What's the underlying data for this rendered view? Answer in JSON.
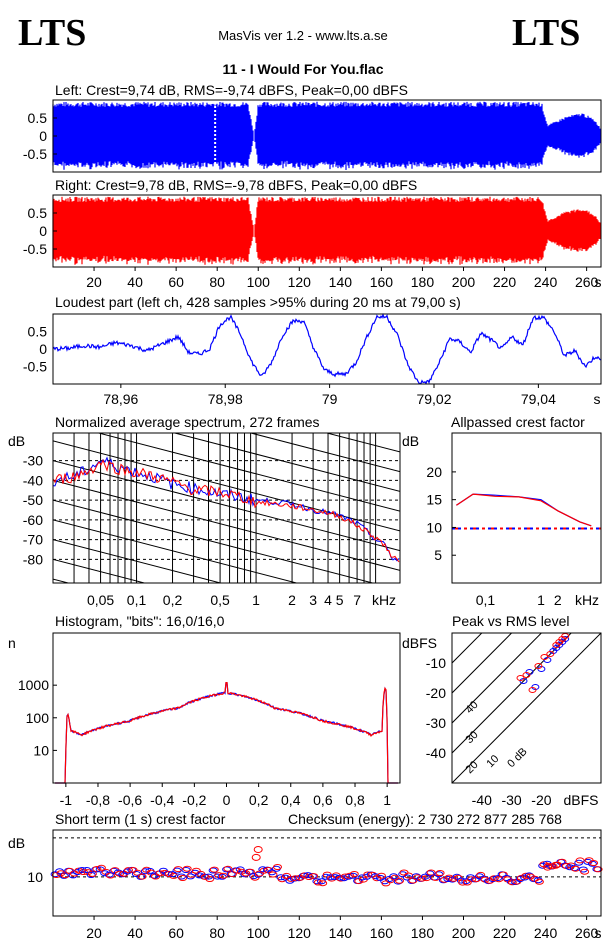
{
  "header": {
    "logo_left": "LTS",
    "logo_right": "LTS",
    "app_title": "MasVis ver 1.2 - www.lts.a.se",
    "file_title": "11 - I Would For You.flac"
  },
  "colors": {
    "left": "#0000ff",
    "right": "#ff0000",
    "grid": "#000000"
  },
  "chart_data": [
    {
      "id": "left_waveform",
      "type": "area",
      "title": "Left: Crest=9,74 dB, RMS=-9,74 dBFS, Peak=0,00 dBFS",
      "channel": "left",
      "ylim": [
        -1,
        1
      ],
      "xlim": [
        0,
        267
      ],
      "yticks": [
        "0.5",
        "0",
        "-0.5"
      ],
      "envelope": [
        [
          0,
          0.95
        ],
        [
          78,
          0.95
        ],
        [
          80,
          0.95
        ],
        [
          95,
          0.95
        ],
        [
          98,
          0.0
        ],
        [
          100,
          0.95
        ],
        [
          102,
          0.95
        ],
        [
          238,
          0.95
        ],
        [
          241,
          0.3
        ],
        [
          250,
          0.55
        ],
        [
          258,
          0.65
        ],
        [
          264,
          0.45
        ],
        [
          267,
          0.2
        ]
      ],
      "dotted_marker_x": 79
    },
    {
      "id": "right_waveform",
      "type": "area",
      "title": "Right: Crest=9,78 dB, RMS=-9,78 dBFS, Peak=0,00 dBFS",
      "channel": "right",
      "ylim": [
        -1,
        1
      ],
      "xlim": [
        0,
        267
      ],
      "yticks": [
        "0.5",
        "0",
        "-0.5"
      ],
      "xticks": [
        "20",
        "40",
        "60",
        "80",
        "100",
        "120",
        "140",
        "160",
        "180",
        "200",
        "220",
        "240",
        "260"
      ],
      "xunit": "s",
      "envelope": [
        [
          0,
          0.95
        ],
        [
          95,
          0.95
        ],
        [
          98,
          0.0
        ],
        [
          100,
          0.95
        ],
        [
          102,
          0.95
        ],
        [
          238,
          0.95
        ],
        [
          241,
          0.3
        ],
        [
          250,
          0.55
        ],
        [
          258,
          0.65
        ],
        [
          264,
          0.45
        ],
        [
          267,
          0.2
        ]
      ]
    },
    {
      "id": "loudest_part",
      "type": "line",
      "title": "Loudest part (left  ch, 428 samples >95% during 20 ms at 79,00 s)",
      "xlim": [
        78.947,
        79.052
      ],
      "ylim": [
        -1,
        1
      ],
      "yticks": [
        "0.5",
        "0",
        "-0.5"
      ],
      "xticks": [
        "78,96",
        "78,98",
        "79",
        "79,02",
        "79,04"
      ],
      "xunit": "s",
      "series": [
        {
          "values": [
            [
              78.947,
              0.0
            ],
            [
              78.95,
              0.02
            ],
            [
              78.953,
              0.1
            ],
            [
              78.956,
              0.05
            ],
            [
              78.959,
              0.18
            ],
            [
              78.962,
              0.1
            ],
            [
              78.965,
              -0.05
            ],
            [
              78.968,
              0.15
            ],
            [
              78.971,
              0.35
            ],
            [
              78.973,
              -0.1
            ],
            [
              78.975,
              -0.15
            ],
            [
              78.977,
              0.0
            ],
            [
              78.979,
              0.7
            ],
            [
              78.981,
              0.92
            ],
            [
              78.983,
              0.4
            ],
            [
              78.985,
              -0.35
            ],
            [
              78.987,
              -0.8
            ],
            [
              78.989,
              -0.35
            ],
            [
              78.991,
              0.4
            ],
            [
              78.993,
              0.8
            ],
            [
              78.995,
              0.8
            ],
            [
              78.997,
              0.0
            ],
            [
              78.999,
              -0.6
            ],
            [
              79.001,
              -0.72
            ],
            [
              79.003,
              -0.72
            ],
            [
              79.005,
              -0.4
            ],
            [
              79.007,
              0.3
            ],
            [
              79.009,
              0.92
            ],
            [
              79.011,
              0.92
            ],
            [
              79.013,
              0.4
            ],
            [
              79.015,
              -0.45
            ],
            [
              79.017,
              -0.95
            ],
            [
              79.019,
              -0.95
            ],
            [
              79.021,
              -0.4
            ],
            [
              79.023,
              0.3
            ],
            [
              79.025,
              0.2
            ],
            [
              79.027,
              -0.1
            ],
            [
              79.029,
              0.45
            ],
            [
              79.031,
              0.25
            ],
            [
              79.033,
              0.0
            ],
            [
              79.035,
              0.35
            ],
            [
              79.037,
              0.1
            ],
            [
              79.039,
              0.9
            ],
            [
              79.041,
              0.9
            ],
            [
              79.043,
              0.5
            ],
            [
              79.045,
              -0.2
            ],
            [
              79.047,
              -0.05
            ],
            [
              79.049,
              -0.5
            ],
            [
              79.051,
              -0.2
            ],
            [
              79.052,
              -0.35
            ]
          ]
        }
      ]
    },
    {
      "id": "spectrum",
      "type": "line",
      "title": "Normalized average spectrum, 272 frames",
      "ylabel": "dB",
      "xunit": "kHz",
      "yticks": [
        "-30",
        "-40",
        "-50",
        "-60",
        "-70",
        "-80"
      ],
      "xticks": [
        "0,05",
        "0,1",
        "0,2",
        "0,5",
        "1",
        "2",
        "3",
        "4",
        "5",
        "7"
      ],
      "series": [
        {
          "channel": "left",
          "values": [
            [
              0.02,
              -40
            ],
            [
              0.03,
              -38
            ],
            [
              0.04,
              -34
            ],
            [
              0.05,
              -30
            ],
            [
              0.07,
              -33
            ],
            [
              0.1,
              -36
            ],
            [
              0.2,
              -42
            ],
            [
              0.3,
              -44
            ],
            [
              0.5,
              -47
            ],
            [
              1,
              -50
            ],
            [
              2,
              -52
            ],
            [
              3,
              -55
            ],
            [
              5,
              -58
            ],
            [
              7,
              -62
            ],
            [
              10,
              -70
            ],
            [
              12,
              -73
            ],
            [
              14,
              -80
            ]
          ]
        },
        {
          "channel": "right",
          "values": [
            [
              0.02,
              -40
            ],
            [
              0.03,
              -38
            ],
            [
              0.04,
              -35
            ],
            [
              0.05,
              -31
            ],
            [
              0.07,
              -34
            ],
            [
              0.1,
              -36
            ],
            [
              0.2,
              -41
            ],
            [
              0.3,
              -45
            ],
            [
              0.5,
              -46
            ],
            [
              1,
              -51
            ],
            [
              2,
              -53
            ],
            [
              3,
              -55
            ],
            [
              5,
              -58
            ],
            [
              7,
              -63
            ],
            [
              10,
              -69
            ],
            [
              12,
              -73
            ],
            [
              14,
              -80
            ]
          ]
        }
      ]
    },
    {
      "id": "allpassed_crest",
      "type": "line",
      "title": "Allpassed crest factor",
      "ylabel": "dB",
      "xunit": "kHz",
      "yticks": [
        "20",
        "15",
        "10",
        "5"
      ],
      "xticks": [
        "0,1",
        "1",
        "2"
      ],
      "reference_db": 9.8,
      "series": [
        {
          "channel": "left",
          "values": [
            [
              0.03,
              14
            ],
            [
              0.06,
              16
            ],
            [
              0.15,
              15.8
            ],
            [
              0.4,
              15.5
            ],
            [
              1,
              15
            ],
            [
              2,
              13
            ],
            [
              5,
              11
            ],
            [
              8,
              10.3
            ]
          ]
        },
        {
          "channel": "right",
          "values": [
            [
              0.03,
              14
            ],
            [
              0.06,
              16
            ],
            [
              0.15,
              15.6
            ],
            [
              0.4,
              15.5
            ],
            [
              1,
              14.8
            ],
            [
              2,
              13
            ],
            [
              5,
              11
            ],
            [
              8,
              10.3
            ]
          ]
        }
      ]
    },
    {
      "id": "histogram",
      "type": "line",
      "title": "Histogram, \"bits\": 16,0/16,0",
      "ylabel": "n",
      "yticks": [
        "1000",
        "100",
        "10"
      ],
      "xticks": [
        "-1",
        "-0,8",
        "-0,6",
        "-0,4",
        "-0,2",
        "0",
        "0,2",
        "0,4",
        "0,6",
        "0,8",
        "1"
      ],
      "series": [
        {
          "channel": "left",
          "values": [
            [
              -1,
              1
            ],
            [
              -0.99,
              150
            ],
            [
              -0.97,
              40
            ],
            [
              -0.9,
              30
            ],
            [
              -0.6,
              80
            ],
            [
              -0.3,
              200
            ],
            [
              0,
              600
            ],
            [
              0.3,
              200
            ],
            [
              0.6,
              80
            ],
            [
              0.9,
              30
            ],
            [
              0.97,
              40
            ],
            [
              0.99,
              1000
            ],
            [
              1,
              1
            ]
          ]
        },
        {
          "channel": "right",
          "values": [
            [
              -1,
              1
            ],
            [
              -0.99,
              150
            ],
            [
              -0.97,
              40
            ],
            [
              -0.9,
              30
            ],
            [
              -0.6,
              80
            ],
            [
              -0.3,
              200
            ],
            [
              0,
              600
            ],
            [
              0.3,
              200
            ],
            [
              0.6,
              80
            ],
            [
              0.9,
              30
            ],
            [
              0.97,
              40
            ],
            [
              0.99,
              1000
            ],
            [
              1,
              1
            ]
          ]
        }
      ]
    },
    {
      "id": "peak_vs_rms",
      "type": "scatter",
      "title": "Peak vs RMS level",
      "ylabel": "dBFS",
      "xunit": "dBFS",
      "yticks": [
        "-10",
        "-20",
        "-30",
        "-40"
      ],
      "xticks": [
        "-40",
        "-30",
        "-20"
      ],
      "diagonals": [
        "40",
        "30",
        "20",
        "10",
        "0 dB"
      ],
      "series": [
        {
          "channel": "left",
          "values": [
            [
              -26,
              -16
            ],
            [
              -24,
              -13
            ],
            [
              -22,
              -18
            ],
            [
              -20,
              -12
            ],
            [
              -18,
              -9
            ],
            [
              -16,
              -6
            ],
            [
              -15,
              -5
            ],
            [
              -14,
              -4
            ],
            [
              -13,
              -3
            ],
            [
              -12,
              -2
            ]
          ]
        },
        {
          "channel": "right",
          "values": [
            [
              -27,
              -15
            ],
            [
              -25,
              -14
            ],
            [
              -23,
              -19
            ],
            [
              -21,
              -11
            ],
            [
              -19,
              -8
            ],
            [
              -17,
              -7
            ],
            [
              -15,
              -4
            ],
            [
              -14,
              -3
            ],
            [
              -13,
              -2
            ],
            [
              -12,
              -1
            ]
          ]
        }
      ]
    },
    {
      "id": "short_term_crest",
      "type": "scatter",
      "title": "Short term (1 s) crest factor",
      "checksum": "Checksum (energy):  2 730 272 877 285 768",
      "ylabel": "dB",
      "yticks": [
        "10"
      ],
      "xticks": [
        "20",
        "40",
        "60",
        "80",
        "100",
        "120",
        "140",
        "160",
        "180",
        "200",
        "220",
        "240",
        "260"
      ],
      "xunit": "s",
      "base_db": 10,
      "outliers": [
        [
          100,
          17
        ],
        [
          99,
          15
        ],
        [
          241,
          12.5
        ],
        [
          245,
          13
        ]
      ]
    }
  ]
}
